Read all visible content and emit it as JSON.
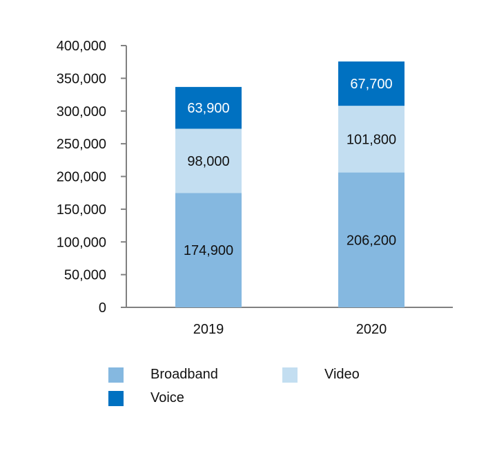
{
  "chart_data": {
    "type": "bar",
    "stacked": true,
    "title": "",
    "xlabel": "",
    "ylabel": "",
    "categories": [
      "2019",
      "2020"
    ],
    "series": [
      {
        "name": "Broadband",
        "values": [
          174900,
          206200
        ],
        "color": "#85B8E0",
        "label_color": "#111111"
      },
      {
        "name": "Video",
        "values": [
          98000,
          101800
        ],
        "color": "#C3DEF1",
        "label_color": "#111111"
      },
      {
        "name": "Voice",
        "values": [
          63900,
          67700
        ],
        "color": "#0071C1",
        "label_color": "#FFFFFF"
      }
    ],
    "ylim": [
      0,
      400000
    ],
    "yticks": [
      0,
      50000,
      100000,
      150000,
      200000,
      250000,
      300000,
      350000,
      400000
    ],
    "ytick_labels": [
      "0",
      "50,000",
      "100,000",
      "150,000",
      "200,000",
      "250,000",
      "300,000",
      "350,000",
      "400,000"
    ],
    "data_labels": [
      [
        "174,900",
        "206,200"
      ],
      [
        "98,000",
        "101,800"
      ],
      [
        "63,900",
        "67,700"
      ]
    ],
    "grid": false,
    "legend": {
      "position": "bottom",
      "entries": [
        "Broadband",
        "Video",
        "Voice"
      ]
    },
    "axis_color": "#808080"
  }
}
